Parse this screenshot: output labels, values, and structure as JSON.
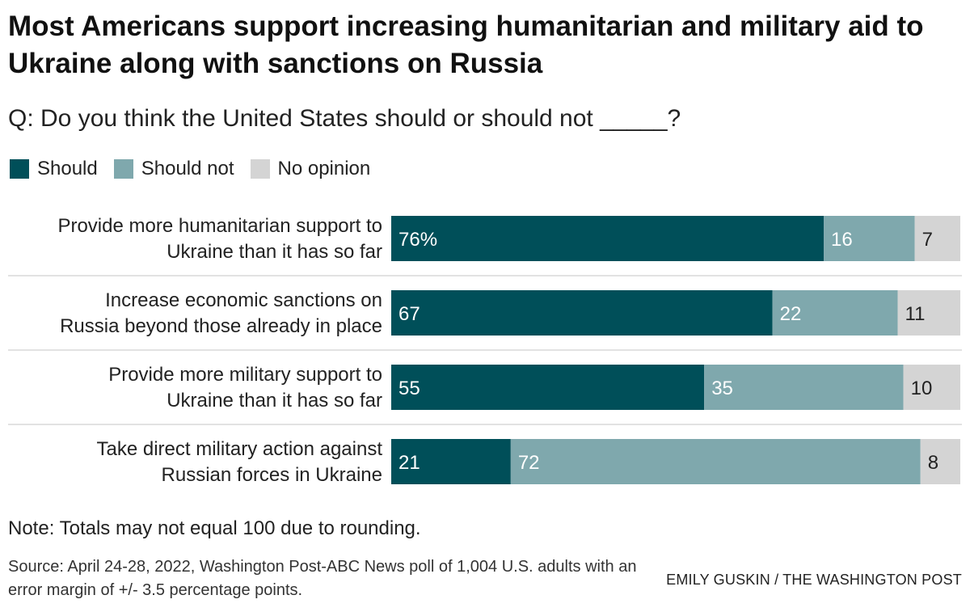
{
  "title": "Most Americans support increasing humanitarian and military aid to Ukraine along with sanctions on Russia",
  "subtitle": "Q: Do you think the United States should or should not _____?",
  "legend": {
    "should": "Should",
    "should_not": "Should not",
    "no_opinion": "No opinion"
  },
  "colors": {
    "should": "#004f59",
    "should_not": "#7fa8ad",
    "no_opinion": "#d4d4d4",
    "label_dark": "#ffffff",
    "label_light": "#222222"
  },
  "chart_data": {
    "type": "bar",
    "orientation": "horizontal",
    "stacked": true,
    "categories": [
      [
        "Provide more humanitarian support to",
        "Ukraine than it has so far"
      ],
      [
        "Increase economic sanctions on",
        "Russia beyond those already in place"
      ],
      [
        "Provide more military support to",
        "Ukraine than it has so far"
      ],
      [
        "Take direct military action against",
        "Russian forces in Ukraine"
      ]
    ],
    "series": [
      {
        "name": "Should",
        "values": [
          76,
          67,
          55,
          21
        ]
      },
      {
        "name": "Should not",
        "values": [
          16,
          22,
          35,
          72
        ]
      },
      {
        "name": "No opinion",
        "values": [
          7,
          11,
          10,
          8
        ]
      }
    ],
    "first_value_suffix": "%",
    "xlim": [
      0,
      100
    ]
  },
  "note": "Note: Totals may not equal 100 due to rounding.",
  "source": "Source: April 24-28, 2022, Washington Post-ABC News poll of 1,004 U.S. adults with an error margin of +/- 3.5 percentage points.",
  "credit": "EMILY GUSKIN / THE WASHINGTON POST"
}
